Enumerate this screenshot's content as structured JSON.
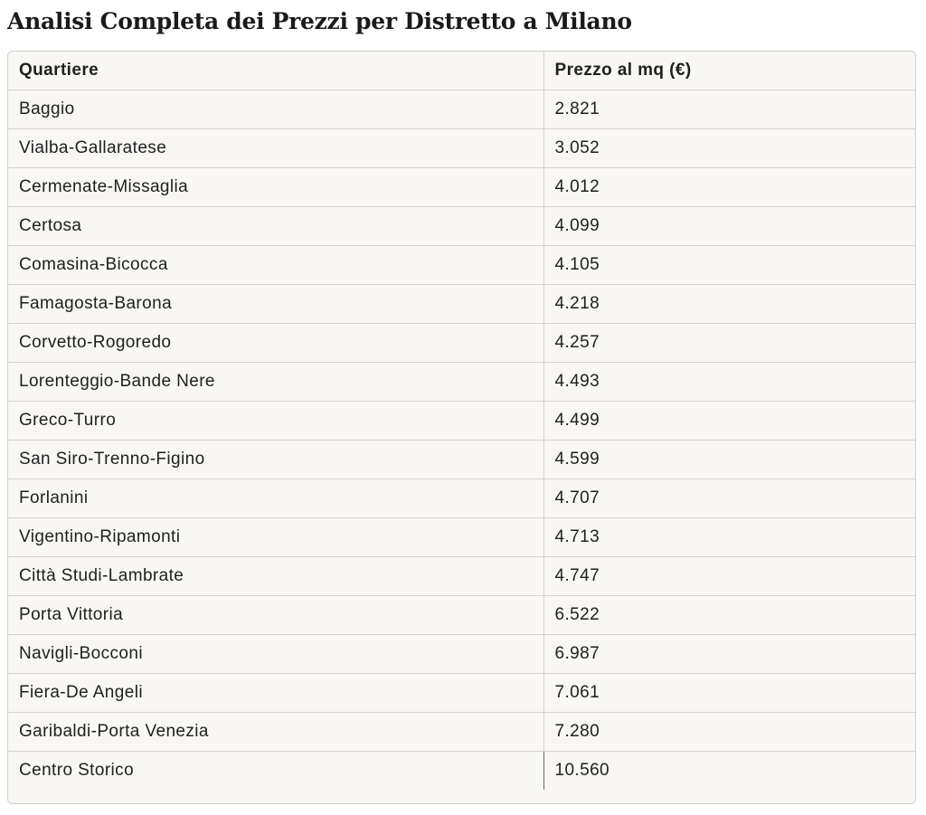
{
  "title": "Analisi Completa dei Prezzi per Distretto a Milano",
  "table": {
    "headers": [
      "Quartiere",
      "Prezzo al mq (€)"
    ],
    "rows": [
      [
        "Baggio",
        "2.821"
      ],
      [
        "Vialba-Gallaratese",
        "3.052"
      ],
      [
        "Cermenate-Missaglia",
        "4.012"
      ],
      [
        "Certosa",
        "4.099"
      ],
      [
        "Comasina-Bicocca",
        "4.105"
      ],
      [
        "Famagosta-Barona",
        "4.218"
      ],
      [
        "Corvetto-Rogoredo",
        "4.257"
      ],
      [
        "Lorenteggio-Bande Nere",
        "4.493"
      ],
      [
        "Greco-Turro",
        "4.499"
      ],
      [
        "San Siro-Trenno-Figino",
        "4.599"
      ],
      [
        "Forlanini",
        "4.707"
      ],
      [
        "Vigentino-Ripamonti",
        "4.713"
      ],
      [
        "Città Studi-Lambrate",
        "4.747"
      ],
      [
        "Porta Vittoria",
        "6.522"
      ],
      [
        "Navigli-Bocconi",
        "6.987"
      ],
      [
        "Fiera-De Angeli",
        "7.061"
      ],
      [
        "Garibaldi-Porta Venezia",
        "7.280"
      ],
      [
        "Centro Storico",
        "10.560"
      ]
    ]
  },
  "colors": {
    "table_background": "#f8f7f4",
    "border": "#d4d3cf",
    "text": "#1f1f1f"
  }
}
